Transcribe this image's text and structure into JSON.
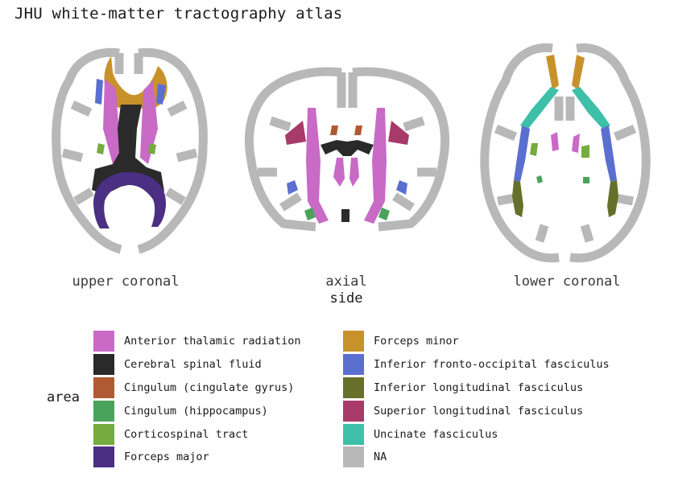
{
  "title": "JHU white-matter tractography atlas",
  "panels": [
    {
      "label": "upper coronal"
    },
    {
      "label": "axial"
    },
    {
      "label": "lower coronal"
    }
  ],
  "x_axis_title": "side",
  "legend": {
    "title": "area",
    "items": [
      {
        "label": "Anterior thalamic radiation",
        "color": "#c86ac6"
      },
      {
        "label": "Cerebral spinal fluid",
        "color": "#2a2a2a"
      },
      {
        "label": "Cingulum (cingulate gyrus)",
        "color": "#b05a34"
      },
      {
        "label": "Cingulum (hippocampus)",
        "color": "#4aa35a"
      },
      {
        "label": "Corticospinal tract",
        "color": "#76ab3e"
      },
      {
        "label": "Forceps major",
        "color": "#4a2f82"
      },
      {
        "label": "Forceps minor",
        "color": "#c8922a"
      },
      {
        "label": "Inferior fronto-occipital fasciculus",
        "color": "#5b6fd0"
      },
      {
        "label": "Inferior longitudinal fasciculus",
        "color": "#66702a"
      },
      {
        "label": "Superior longitudinal fasciculus",
        "color": "#a83a6a"
      },
      {
        "label": "Uncinate fasciculus",
        "color": "#3ec0a8"
      },
      {
        "label": "NA",
        "color": "#b8b8b8"
      }
    ]
  }
}
